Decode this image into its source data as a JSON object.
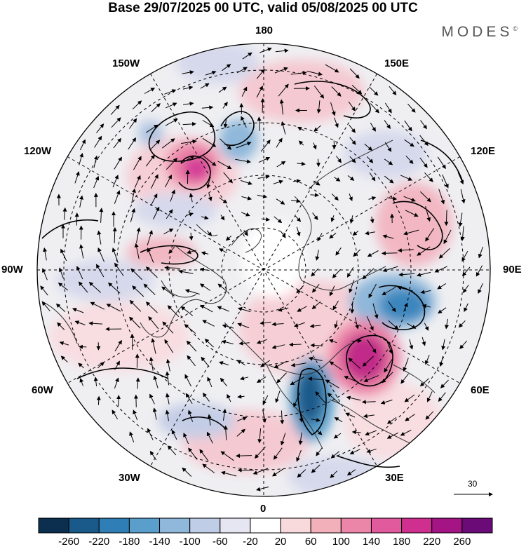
{
  "header": {
    "title": "Base 29/07/2025 00 UTC, valid 05/08/2025 00 UTC",
    "brand": "MODES",
    "brand_mark": "©"
  },
  "map": {
    "projection": "north-polar-stereographic",
    "longitude_labels": {
      "top": "180",
      "bottom": "0",
      "left": "90W",
      "right": "90E",
      "upper_left_1": "150W",
      "upper_left_2": "120W",
      "upper_right_1": "150E",
      "upper_right_2": "120E",
      "lower_left_1": "60W",
      "lower_left_2": "30W",
      "lower_right_1": "60E",
      "lower_right_2": "30E"
    },
    "anomaly_features": [
      {
        "name": "strong-positive-east-siberia",
        "sign": "positive",
        "level": 200
      },
      {
        "name": "strong-negative-barents-kara",
        "sign": "negative",
        "level": -220
      },
      {
        "name": "negative-central-asia",
        "sign": "negative",
        "level": -180
      },
      {
        "name": "positive-alaska",
        "sign": "positive",
        "level": 160
      },
      {
        "name": "negative-bering",
        "sign": "negative",
        "level": -140
      }
    ]
  },
  "reference_vector": {
    "value": "30"
  },
  "colorbar": {
    "colors": [
      "#0c2f4f",
      "#1a5a8a",
      "#2f7fb6",
      "#5a9fcb",
      "#8fb8da",
      "#bfcde6",
      "#e6e6f2",
      "#ffffff",
      "#f8d9dc",
      "#f2b0bb",
      "#ec86a8",
      "#e15a9e",
      "#cf2f8e",
      "#a51484",
      "#6a0b78"
    ],
    "labels": [
      "-260",
      "-220",
      "-180",
      "-140",
      "-100",
      "-60",
      "-20",
      "20",
      "60",
      "100",
      "140",
      "180",
      "220",
      "260"
    ]
  }
}
